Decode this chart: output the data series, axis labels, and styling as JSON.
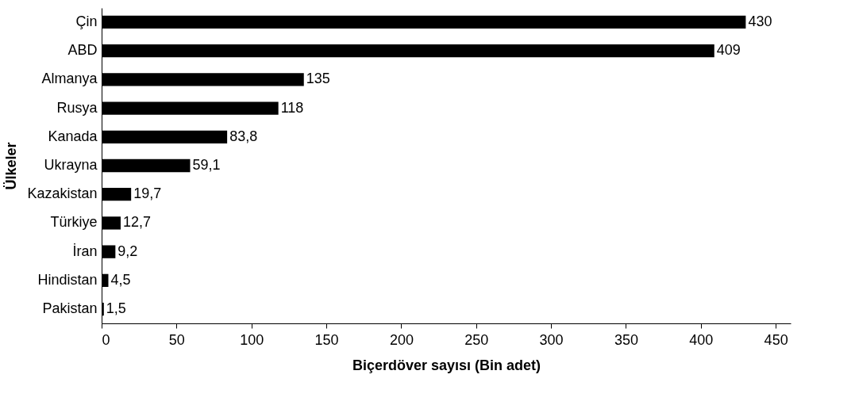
{
  "chart_data": {
    "type": "bar",
    "orientation": "horizontal",
    "xlabel": "Biçerdöver sayısı (Bin adet)",
    "ylabel": "Ülkeler",
    "categories": [
      "Çin",
      "ABD",
      "Almanya",
      "Rusya",
      "Kanada",
      "Ukrayna",
      "Kazakistan",
      "Türkiye",
      "İran",
      "Hindistan",
      "Pakistan"
    ],
    "values": [
      430,
      409,
      135,
      118,
      83.8,
      59.1,
      19.7,
      12.7,
      9.2,
      4.5,
      1.5
    ],
    "value_labels": [
      "430",
      "409",
      "135",
      "118",
      "83,8",
      "59,1",
      "19,7",
      "12,7",
      "9,2",
      "4,5",
      "1,5"
    ],
    "color": "#000000",
    "xlim": [
      0,
      460
    ],
    "xticks": [
      0,
      50,
      100,
      150,
      200,
      250,
      300,
      350,
      400,
      450
    ],
    "grid": false
  }
}
